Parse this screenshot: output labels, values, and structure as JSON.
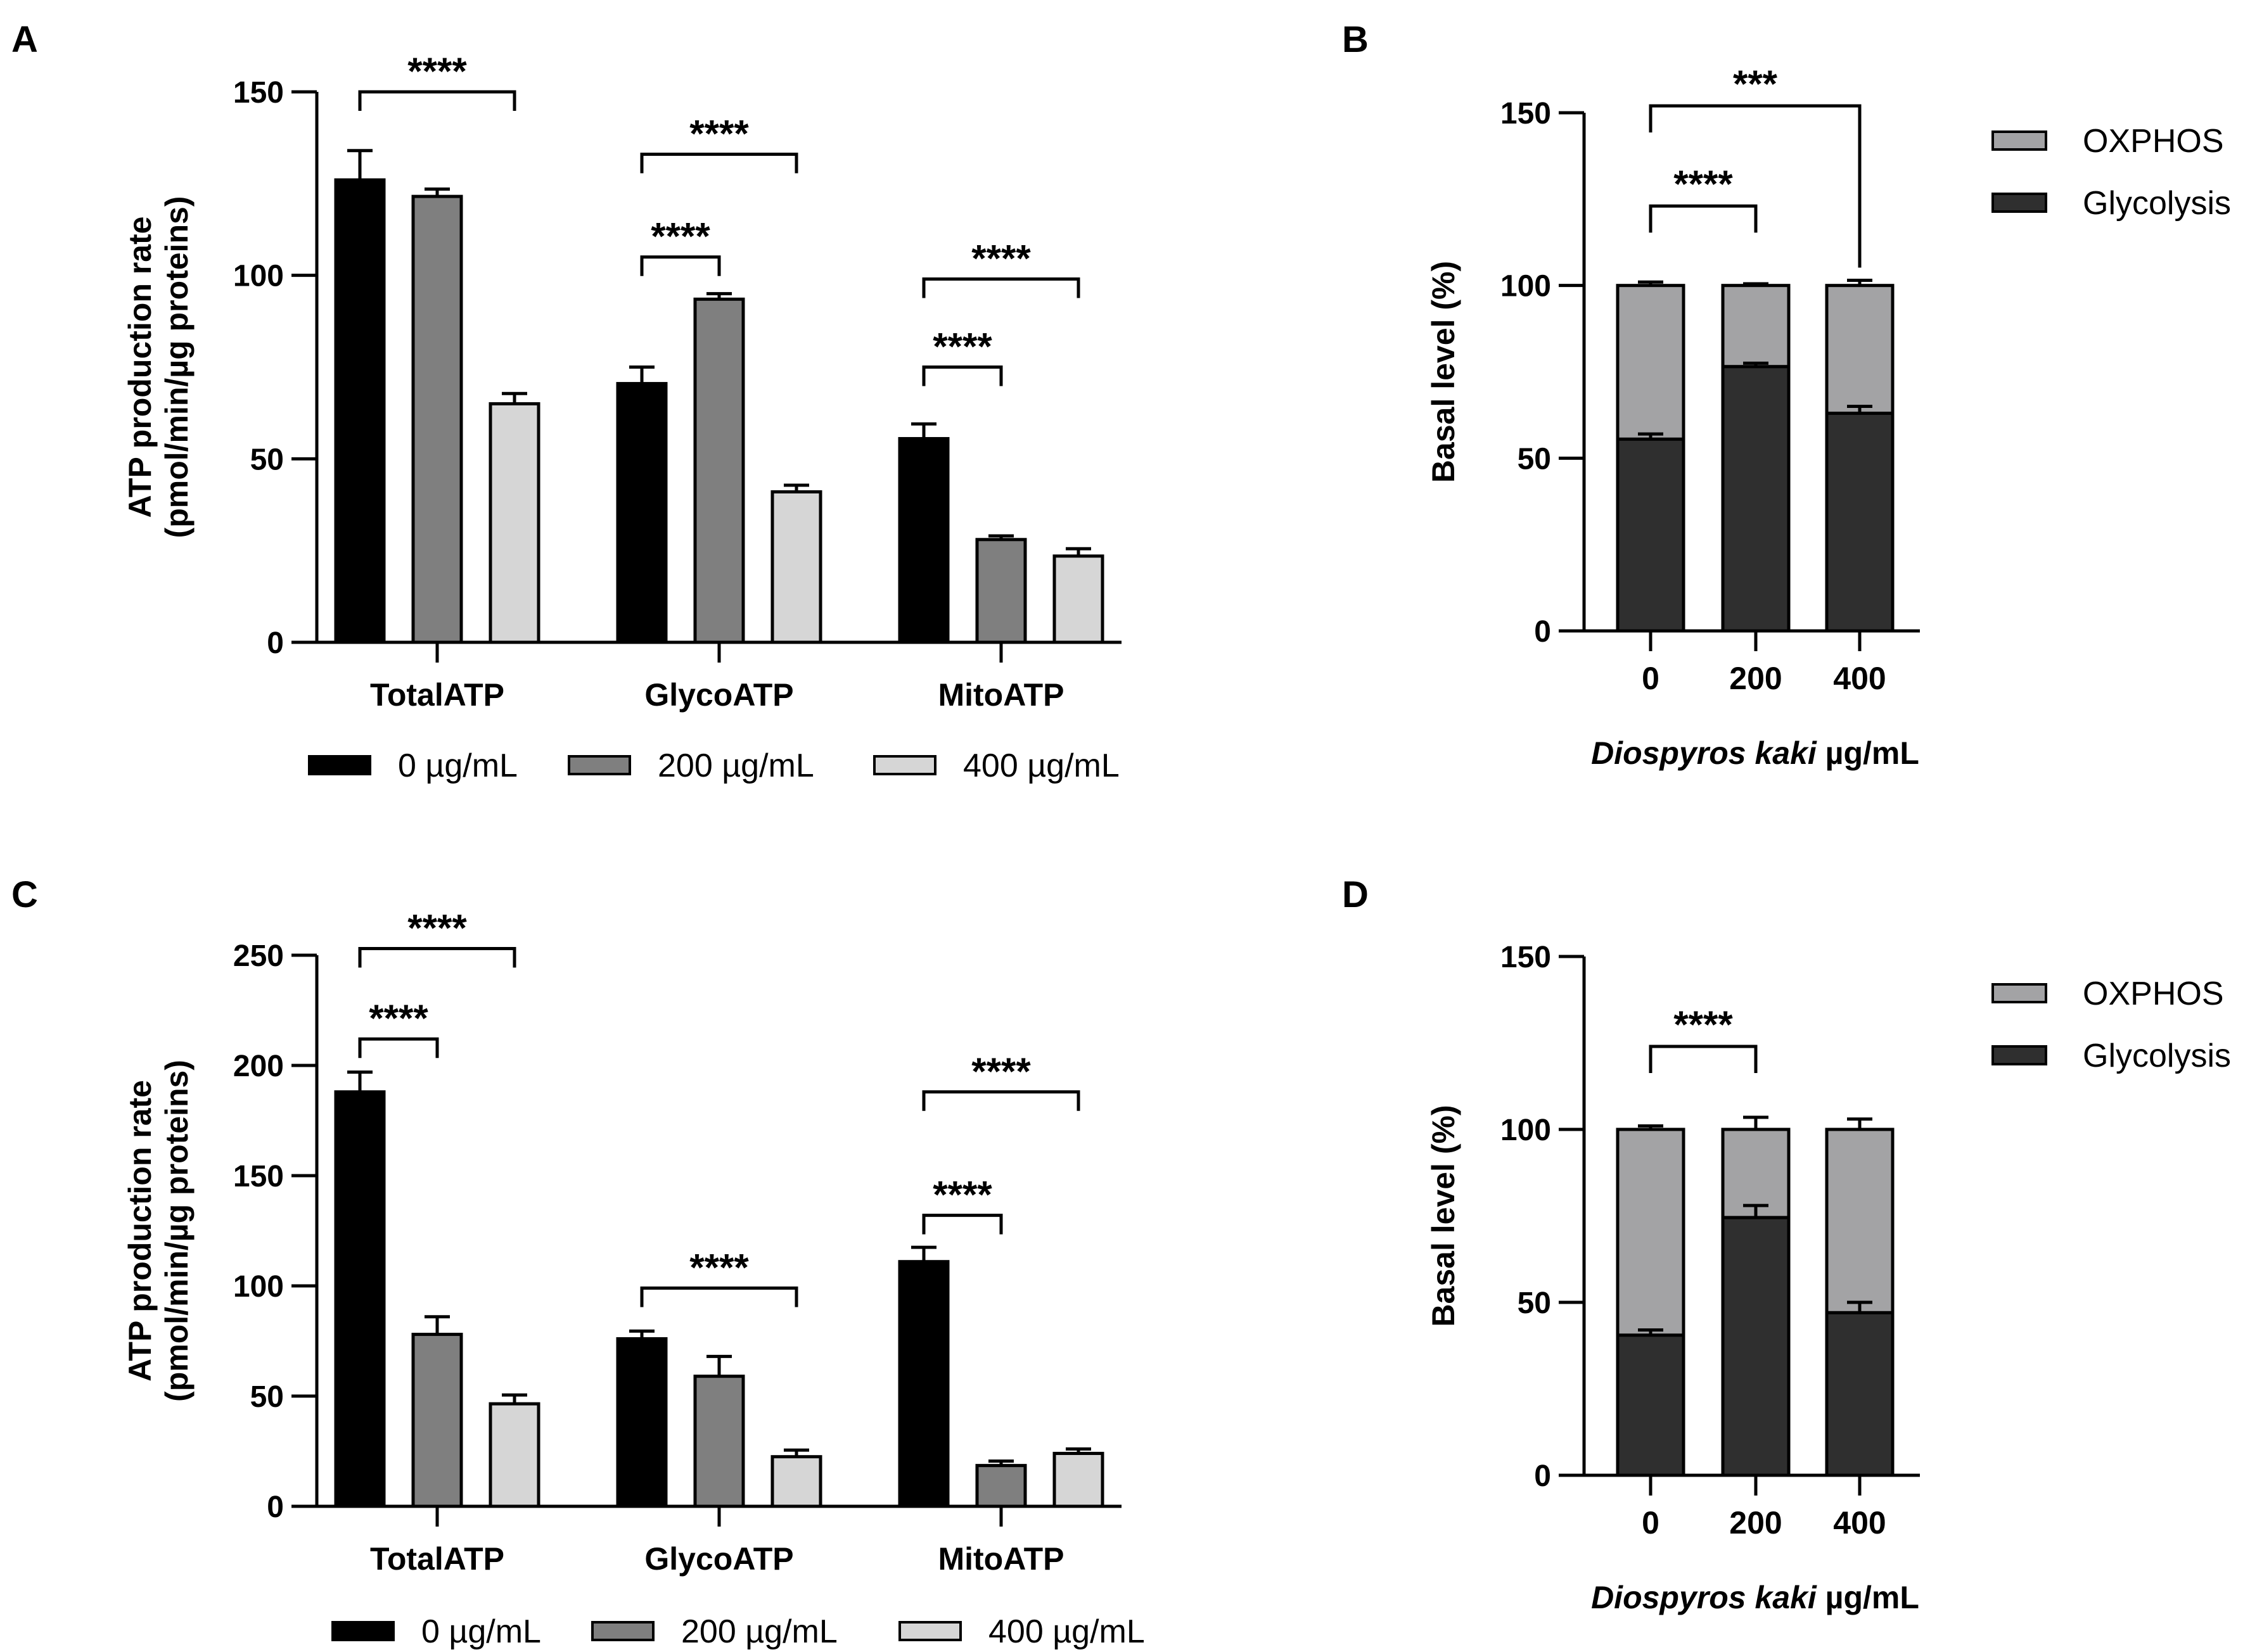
{
  "colors": {
    "dose_0": "#000000",
    "dose_200": "#7f7f7f",
    "dose_400": "#d6d6d6",
    "oxphos": "#a3a3a5",
    "glycolysis": "#2f2f2f"
  },
  "chart_data": [
    {
      "panel": "A",
      "type": "bar",
      "ylabel_line1": "ATP production rate",
      "ylabel_line2": "(pmol/min/µg proteins)",
      "xlabel": "",
      "ylim": [
        0,
        150
      ],
      "yticks": [
        "0",
        "50",
        "100",
        "150"
      ],
      "categories": [
        "TotalATP",
        "GlycoATP",
        "MitoATP"
      ],
      "series": [
        {
          "name": "0 µg/mL",
          "values": [
            126,
            70.5,
            55.5
          ],
          "errors": [
            8,
            4.5,
            4
          ]
        },
        {
          "name": "200 µg/mL",
          "values": [
            121.5,
            93.5,
            28
          ],
          "errors": [
            2,
            1.5,
            1
          ]
        },
        {
          "name": "400 µg/mL",
          "values": [
            65,
            41,
            23.5
          ],
          "errors": [
            2.8,
            1.8,
            2
          ]
        }
      ],
      "significance": [
        {
          "group": 0,
          "from": 0,
          "to": 2,
          "label": "****",
          "y": 150
        },
        {
          "group": 1,
          "from": 0,
          "to": 2,
          "label": "****",
          "y": 133
        },
        {
          "group": 1,
          "from": 0,
          "to": 1,
          "label": "****",
          "y": 105
        },
        {
          "group": 2,
          "from": 0,
          "to": 2,
          "label": "****",
          "y": 99
        },
        {
          "group": 2,
          "from": 0,
          "to": 1,
          "label": "****",
          "y": 75
        }
      ]
    },
    {
      "panel": "B",
      "type": "stacked_bar",
      "ylabel": "Basal level (%)",
      "xlabel_italic": "Diospyros kaki",
      "xlabel_rest": " µg/mL",
      "ylim": [
        0,
        150
      ],
      "yticks": [
        "0",
        "50",
        "100",
        "150"
      ],
      "categories": [
        "0",
        "200",
        "400"
      ],
      "series": [
        {
          "name": "Glycolysis",
          "values": [
            55.5,
            76.5,
            63
          ],
          "errors": [
            1.5,
            1,
            2
          ]
        },
        {
          "name": "OXPHOS",
          "values": [
            44.5,
            23.5,
            37
          ],
          "errors": [
            1,
            0.5,
            1.5
          ]
        }
      ],
      "legend": [
        "OXPHOS",
        "Glycolysis"
      ],
      "significance": [
        {
          "from": 0,
          "to": 1,
          "label": "****",
          "y": 123
        },
        {
          "from": 0,
          "to": 2,
          "label": "***",
          "y": 152
        }
      ]
    },
    {
      "panel": "C",
      "type": "bar",
      "ylabel_line1": "ATP production rate",
      "ylabel_line2": "(pmol/min/µg proteins)",
      "xlabel": "",
      "ylim": [
        0,
        250
      ],
      "yticks": [
        "0",
        "50",
        "100",
        "150",
        "200",
        "250"
      ],
      "categories": [
        "TotalATP",
        "GlycoATP",
        "MitoATP"
      ],
      "series": [
        {
          "name": "0 µg/mL",
          "values": [
            188,
            76,
            111
          ],
          "errors": [
            9,
            3.5,
            6.5
          ]
        },
        {
          "name": "200 µg/mL",
          "values": [
            78,
            59,
            18.5
          ],
          "errors": [
            8,
            9,
            2
          ]
        },
        {
          "name": "400 µg/mL",
          "values": [
            46.5,
            22.5,
            24
          ],
          "errors": [
            4,
            3,
            2
          ]
        }
      ],
      "significance": [
        {
          "group": 0,
          "from": 0,
          "to": 2,
          "label": "****",
          "y": 253
        },
        {
          "group": 0,
          "from": 0,
          "to": 1,
          "label": "****",
          "y": 212
        },
        {
          "group": 1,
          "from": 0,
          "to": 2,
          "label": "****",
          "y": 99
        },
        {
          "group": 2,
          "from": 0,
          "to": 2,
          "label": "****",
          "y": 188
        },
        {
          "group": 2,
          "from": 0,
          "to": 1,
          "label": "****",
          "y": 132
        }
      ]
    },
    {
      "panel": "D",
      "type": "stacked_bar",
      "ylabel": "Basal level (%)",
      "xlabel_italic": "Diospyros kaki",
      "xlabel_rest": " µg/mL",
      "ylim": [
        0,
        150
      ],
      "yticks": [
        "0",
        "50",
        "100",
        "150"
      ],
      "categories": [
        "0",
        "200",
        "400"
      ],
      "series": [
        {
          "name": "Glycolysis",
          "values": [
            40.5,
            74.5,
            47
          ],
          "errors": [
            1.5,
            3.5,
            3
          ]
        },
        {
          "name": "OXPHOS",
          "values": [
            59.5,
            25.5,
            53
          ],
          "errors": [
            1,
            3.5,
            3
          ]
        }
      ],
      "legend": [
        "OXPHOS",
        "Glycolysis"
      ],
      "significance": [
        {
          "from": 0,
          "to": 1,
          "label": "****",
          "y": 124
        }
      ]
    }
  ]
}
